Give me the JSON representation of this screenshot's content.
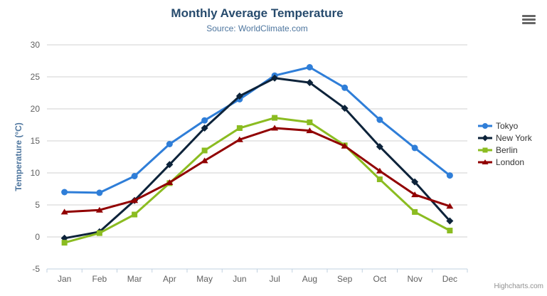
{
  "credit": {
    "label": "Highcharts.com"
  },
  "export_button": {
    "icon": "hamburger-icon"
  },
  "colors": {
    "title": "#274b6d",
    "subtitle": "#4d759e",
    "axis_labels": "#606060",
    "yaxis_title": "#4d759e",
    "gridline": "#d0d0d0",
    "axis_line": "#c0d0e0",
    "legend_text": "#333333",
    "credit_text": "#909090",
    "export_icon": "#666666"
  },
  "chart_data": {
    "type": "line",
    "title": "Monthly Average Temperature",
    "subtitle": "Source: WorldClimate.com",
    "categories": [
      "Jan",
      "Feb",
      "Mar",
      "Apr",
      "May",
      "Jun",
      "Jul",
      "Aug",
      "Sep",
      "Oct",
      "Nov",
      "Dec"
    ],
    "series": [
      {
        "name": "Tokyo",
        "color": "#2f7ed8",
        "marker": "circle",
        "values": [
          7.0,
          6.9,
          9.5,
          14.5,
          18.2,
          21.5,
          25.2,
          26.5,
          23.3,
          18.3,
          13.9,
          9.6
        ]
      },
      {
        "name": "New York",
        "color": "#0d233a",
        "marker": "diamond",
        "values": [
          -0.2,
          0.8,
          5.7,
          11.3,
          17.0,
          22.0,
          24.8,
          24.1,
          20.1,
          14.1,
          8.6,
          2.5
        ]
      },
      {
        "name": "Berlin",
        "color": "#8bbc21",
        "marker": "square",
        "values": [
          -0.9,
          0.6,
          3.5,
          8.4,
          13.5,
          17.0,
          18.6,
          17.9,
          14.3,
          9.0,
          3.9,
          1.0
        ]
      },
      {
        "name": "London",
        "color": "#910000",
        "marker": "triangle",
        "values": [
          3.9,
          4.2,
          5.7,
          8.5,
          11.9,
          15.2,
          17.0,
          16.6,
          14.2,
          10.3,
          6.6,
          4.8
        ]
      }
    ],
    "xlabel": "",
    "ylabel": "Temperature (°C)",
    "yaxis": {
      "min": -5,
      "max": 30,
      "tick_interval": 5
    },
    "grid": true,
    "legend_position": "right"
  }
}
